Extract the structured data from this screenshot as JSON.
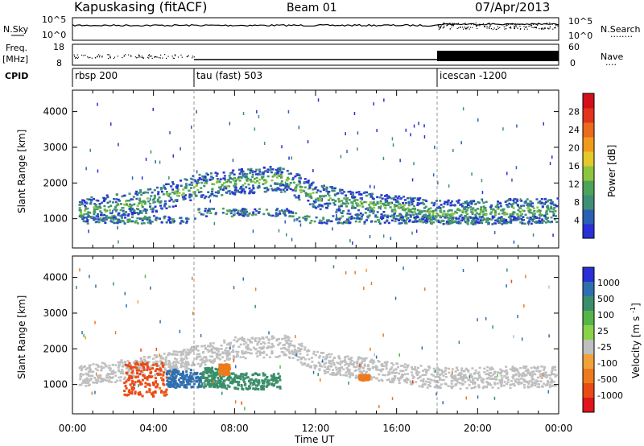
{
  "header": {
    "station": "Kapuskasing (fitACF)",
    "beam": "Beam 01",
    "date": "07/Apr/2013"
  },
  "panels": {
    "nsky_label": "N.Sky",
    "nsearch_label": "N.Search",
    "nsearch_marker": "........",
    "freq_label": "Freq.",
    "freq_unit": "[MHz]",
    "nave_label": "Nave",
    "nave_marker": "....",
    "cpid_label": "CPID",
    "left_ticks_top": [
      "10^5",
      "10^0"
    ],
    "right_ticks_top": [
      "10^5",
      "10^0"
    ],
    "left_ticks_freq": [
      "18",
      "8"
    ],
    "right_ticks_freq": [
      "60",
      "0"
    ]
  },
  "cpid": [
    {
      "name": "rbsp 200",
      "start": 0
    },
    {
      "name": "tau (fast) 503",
      "start": 6
    },
    {
      "name": "icescan -1200",
      "start": 18
    }
  ],
  "chart_data": [
    {
      "type": "heatmap",
      "title": "Power",
      "xlabel": "Time UT",
      "ylabel": "Slant Range [km]",
      "x_ticks": [
        "00:00",
        "04:00",
        "08:00",
        "12:00",
        "16:00",
        "20:00",
        "00:00"
      ],
      "xlim": [
        0,
        24
      ],
      "ylim": [
        180,
        4600
      ],
      "y_ticks": [
        1000,
        2000,
        3000,
        4000
      ],
      "colorbar": {
        "label": "Power [dB]",
        "ticks": [
          4,
          8,
          12,
          16,
          20,
          24,
          28
        ],
        "range": [
          0,
          32
        ],
        "colors": [
          "#2a2fd6",
          "#2b5fb3",
          "#3e8f76",
          "#4ea35a",
          "#8cc63e",
          "#e4c92a",
          "#f29a1e",
          "#ec6a1a",
          "#e2341a",
          "#d3101a"
        ]
      },
      "echo_band": [
        {
          "t": 0.3,
          "r": 1250
        },
        {
          "t": 2,
          "r": 1350
        },
        {
          "t": 4,
          "r": 1550
        },
        {
          "t": 6,
          "r": 1900
        },
        {
          "t": 8,
          "r": 2050
        },
        {
          "t": 10,
          "r": 2150
        },
        {
          "t": 10.5,
          "r": 2100
        },
        {
          "t": 12,
          "r": 1650
        },
        {
          "t": 14,
          "r": 1450
        },
        {
          "t": 16,
          "r": 1320
        },
        {
          "t": 18,
          "r": 1200
        },
        {
          "t": 24,
          "r": 1250
        }
      ]
    },
    {
      "type": "heatmap",
      "title": "Velocity",
      "xlabel": "Time UT",
      "ylabel": "Slant Range [km]",
      "x_ticks": [
        "00:00",
        "04:00",
        "08:00",
        "12:00",
        "16:00",
        "20:00",
        "00:00"
      ],
      "xlim": [
        0,
        24
      ],
      "ylim": [
        180,
        4600
      ],
      "y_ticks": [
        1000,
        2000,
        3000,
        4000
      ],
      "colorbar": {
        "label": "Velocity [m s^-1]",
        "ticks": [
          1000,
          500,
          100,
          25,
          -25,
          -100,
          -500,
          -1000
        ],
        "colors": [
          "#2a2fd6",
          "#2f6fb0",
          "#3a8f6a",
          "#56b548",
          "#8ad24a",
          "#bfbfbf",
          "#f2a23a",
          "#ef7a1c",
          "#ea4a14",
          "#e0141a"
        ]
      },
      "ground_scatter_band": [
        {
          "t": 0.3,
          "r": 1250
        },
        {
          "t": 4,
          "r": 1550
        },
        {
          "t": 8,
          "r": 2050
        },
        {
          "t": 10.5,
          "r": 2100
        },
        {
          "t": 12,
          "r": 1650
        },
        {
          "t": 18,
          "r": 1200
        },
        {
          "t": 24,
          "r": 1250
        }
      ],
      "patches": [
        {
          "t0": 2.5,
          "t1": 4.6,
          "r0": 700,
          "r1": 1650,
          "velocity": -800
        },
        {
          "t0": 4.6,
          "t1": 6.3,
          "r0": 950,
          "r1": 1450,
          "velocity": 500
        },
        {
          "t0": 6.3,
          "t1": 7.5,
          "r0": 950,
          "r1": 1500,
          "velocity": 100
        },
        {
          "t0": 7.5,
          "t1": 10.2,
          "r0": 900,
          "r1": 1350,
          "velocity": 100
        },
        {
          "t0": 7.2,
          "t1": 7.7,
          "r0": 1300,
          "r1": 1600,
          "velocity": -200
        },
        {
          "t0": 14.1,
          "t1": 14.6,
          "r0": 1150,
          "r1": 1300,
          "velocity": -200
        }
      ]
    }
  ]
}
